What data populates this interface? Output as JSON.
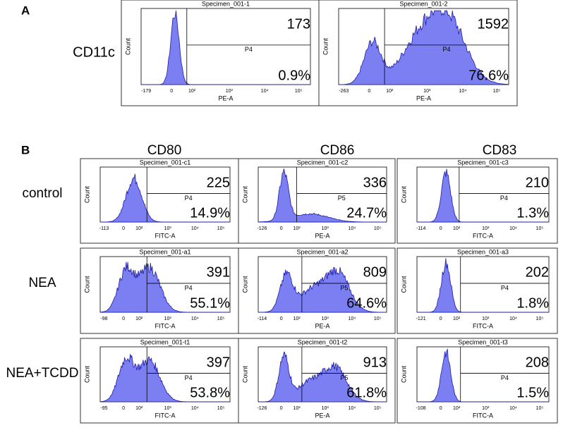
{
  "panel_a": {
    "label": "A",
    "row_label": "CD11c",
    "plots": [
      {
        "title": "Specimen_001-1",
        "count": "173",
        "percent": "0.9%",
        "gate": "P4",
        "x_label": "PE-A",
        "y_label": "Count",
        "x_ticks": [
          "-179",
          "0",
          "10²",
          "10³",
          "10⁴",
          "10⁵"
        ]
      },
      {
        "title": "Specimen_001-2",
        "count": "1592",
        "percent": "76.6%",
        "gate": "P4",
        "x_label": "PE-A",
        "y_label": "Count",
        "x_ticks": [
          "-263",
          "0",
          "10²",
          "10³",
          "10⁴",
          "10⁵"
        ]
      }
    ]
  },
  "panel_b": {
    "label": "B",
    "columns": [
      "CD80",
      "CD86",
      "CD83"
    ],
    "rows": [
      {
        "label": "control",
        "plots": [
          {
            "title": "Specimen_001-c1",
            "count": "225",
            "percent": "14.9%",
            "gate": "P4",
            "x_label": "FITC-A",
            "y_label": "Count",
            "x_ticks": [
              "-113",
              "0",
              "10²",
              "10³",
              "10⁴",
              "10⁵"
            ]
          },
          {
            "title": "Specimen_001-c2",
            "count": "336",
            "percent": "24.7%",
            "gate": "P5",
            "x_label": "PE-A",
            "y_label": "Count",
            "x_ticks": [
              "-126",
              "0",
              "10²",
              "10³",
              "10⁴",
              "10⁵"
            ]
          },
          {
            "title": "Specimen_001-c3",
            "count": "210",
            "percent": "1.3%",
            "gate": "P4",
            "x_label": "FITC-A",
            "y_label": "Count",
            "x_ticks": [
              "-114",
              "0",
              "10²",
              "10³",
              "10⁴",
              "10⁵"
            ]
          }
        ]
      },
      {
        "label": "NEA",
        "plots": [
          {
            "title": "Specimen_001-a1",
            "count": "391",
            "percent": "55.1%",
            "gate": "P4",
            "x_label": "FITC-A",
            "y_label": "Count",
            "x_ticks": [
              "-98",
              "0",
              "10²",
              "10³",
              "10⁴",
              "10⁵"
            ]
          },
          {
            "title": "Specimen_001-a2",
            "count": "809",
            "percent": "64.6%",
            "gate": "P5",
            "x_label": "PE-A",
            "y_label": "Count",
            "x_ticks": [
              "-114",
              "0",
              "10²",
              "10³",
              "10⁴",
              "10⁵"
            ]
          },
          {
            "title": "Specimen_001-a3",
            "count": "202",
            "percent": "1.8%",
            "gate": "P4",
            "x_label": "FITC-A",
            "y_label": "Count",
            "x_ticks": [
              "-121",
              "0",
              "10²",
              "10³",
              "10⁴",
              "10⁵"
            ]
          }
        ]
      },
      {
        "label": "NEA+TCDD",
        "plots": [
          {
            "title": "Specimen_001-t1",
            "count": "397",
            "percent": "53.8%",
            "gate": "P4",
            "x_label": "FITC-A",
            "y_label": "Count",
            "x_ticks": [
              "-95",
              "0",
              "10²",
              "10³",
              "10⁴",
              "10⁵"
            ]
          },
          {
            "title": "Specimen_001-t2",
            "count": "913",
            "percent": "61.8%",
            "gate": "P5",
            "x_label": "PE-A",
            "y_label": "Count",
            "x_ticks": [
              "-126",
              "0",
              "10²",
              "10³",
              "10⁴",
              "10⁵"
            ]
          },
          {
            "title": "Specimen_001-t3",
            "count": "208",
            "percent": "1.5%",
            "gate": "P4",
            "x_label": "FITC-A",
            "y_label": "Count",
            "x_ticks": [
              "-108",
              "0",
              "10²",
              "10³",
              "10⁴",
              "10⁵"
            ]
          }
        ]
      }
    ]
  }
}
